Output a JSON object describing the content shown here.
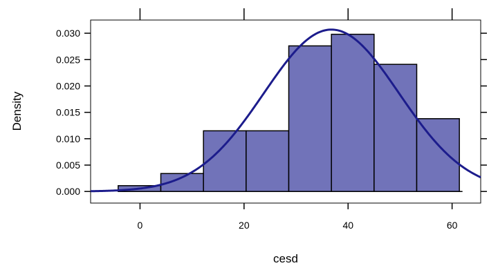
{
  "chart_data": {
    "type": "bar",
    "subtype": "histogram-with-density-curve",
    "title": "",
    "xlabel": "cesd",
    "ylabel": "Density",
    "xlim": [
      -9.5,
      65.5
    ],
    "ylim": [
      -0.0022,
      0.0325
    ],
    "x_ticks": [
      0,
      20,
      40,
      60
    ],
    "x_tick_labels": [
      "0",
      "20",
      "40",
      "60"
    ],
    "y_ticks": [
      0.0,
      0.005,
      0.01,
      0.015,
      0.02,
      0.025,
      0.03
    ],
    "y_tick_labels": [
      "0.000",
      "0.005",
      "0.010",
      "0.015",
      "0.020",
      "0.025",
      "0.030"
    ],
    "bins": [
      {
        "x0": -4.2,
        "x1": 4.0,
        "density": 0.0011
      },
      {
        "x0": 4.0,
        "x1": 12.2,
        "density": 0.0034
      },
      {
        "x0": 12.2,
        "x1": 20.4,
        "density": 0.0115
      },
      {
        "x0": 20.4,
        "x1": 28.6,
        "density": 0.0115
      },
      {
        "x0": 28.6,
        "x1": 36.8,
        "density": 0.0276
      },
      {
        "x0": 36.8,
        "x1": 45.0,
        "density": 0.0298
      },
      {
        "x0": 45.0,
        "x1": 53.2,
        "density": 0.0241
      },
      {
        "x0": 53.2,
        "x1": 61.4,
        "density": 0.0138
      }
    ],
    "baseline": [
      -4.2,
      62.0
    ],
    "curve": {
      "type": "normal",
      "mean": 36.8,
      "sd": 13.0
    },
    "grid": false,
    "legend": "none",
    "colors": {
      "bar_fill": "#7173b9",
      "bar_stroke": "#000000",
      "curve": "#1c1c8c",
      "axis": "#000000",
      "background": "#ffffff"
    }
  }
}
